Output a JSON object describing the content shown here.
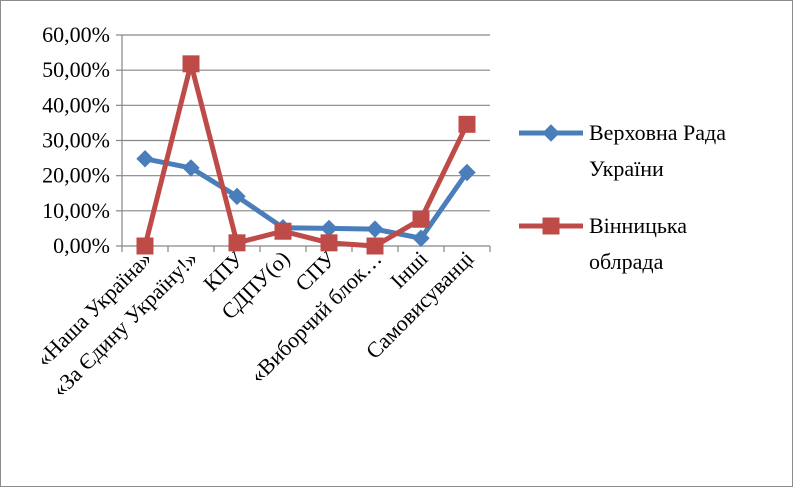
{
  "chart_data": {
    "type": "line",
    "title": "",
    "xlabel": "",
    "ylabel": "",
    "categories": [
      "«Наша Україна»",
      "«За Єдину Україну!»",
      "КПУ",
      "СДПУ(о)",
      "СПУ",
      "«Виборчий блок…",
      "Інші",
      "Самовисуванці"
    ],
    "y_ticks": [
      "0,00%",
      "10,00%",
      "20,00%",
      "30,00%",
      "40,00%",
      "50,00%",
      "60,00%"
    ],
    "ylim": [
      0,
      60
    ],
    "grid": true,
    "legend_position": "right",
    "series": [
      {
        "name": "Верховна Рада України",
        "name_lines": [
          "Верховна Рада",
          "України"
        ],
        "color": "#4a7ebb",
        "marker": "diamond",
        "values": [
          24.8,
          22.2,
          14.1,
          5.2,
          5.0,
          4.8,
          2.2,
          20.9
        ]
      },
      {
        "name": "Вінницька облрада",
        "name_lines": [
          "Вінницька",
          "облрада"
        ],
        "color": "#be4b48",
        "marker": "square",
        "values": [
          0.0,
          51.8,
          0.9,
          4.2,
          0.9,
          0.0,
          7.6,
          34.6
        ]
      }
    ]
  }
}
